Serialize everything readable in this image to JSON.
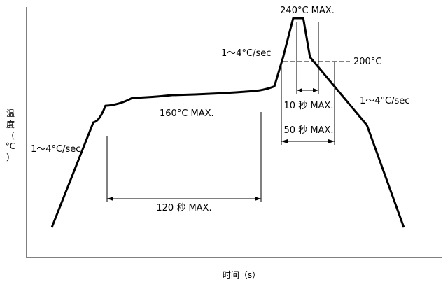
{
  "chart_data": {
    "type": "line",
    "xlabel": "时间（s）",
    "ylabel": [
      "温",
      "度",
      "（",
      "°C",
      "）"
    ],
    "grid": false,
    "series": [
      {
        "x": [
          0,
          62,
          80,
          120,
          180,
          300,
          332,
          345,
          360,
          375,
          385,
          470,
          525
        ],
        "y": [
          25,
          133,
          150,
          158,
          161,
          165,
          170,
          200,
          240,
          240,
          200,
          130,
          25
        ]
      }
    ],
    "annotations": {
      "peak": "240°C MAX.",
      "ramp_up_left": "1～4°C/sec",
      "ramp_up_peak": "1～4°C/sec",
      "ramp_down": "1～4°C/sec",
      "level_200": "200°C",
      "soak_temp": "160°C MAX.",
      "soak_time": "120 秒 MAX.",
      "peak_time": "10 秒 MAX.",
      "above_200_time": "50 秒 MAX."
    }
  }
}
